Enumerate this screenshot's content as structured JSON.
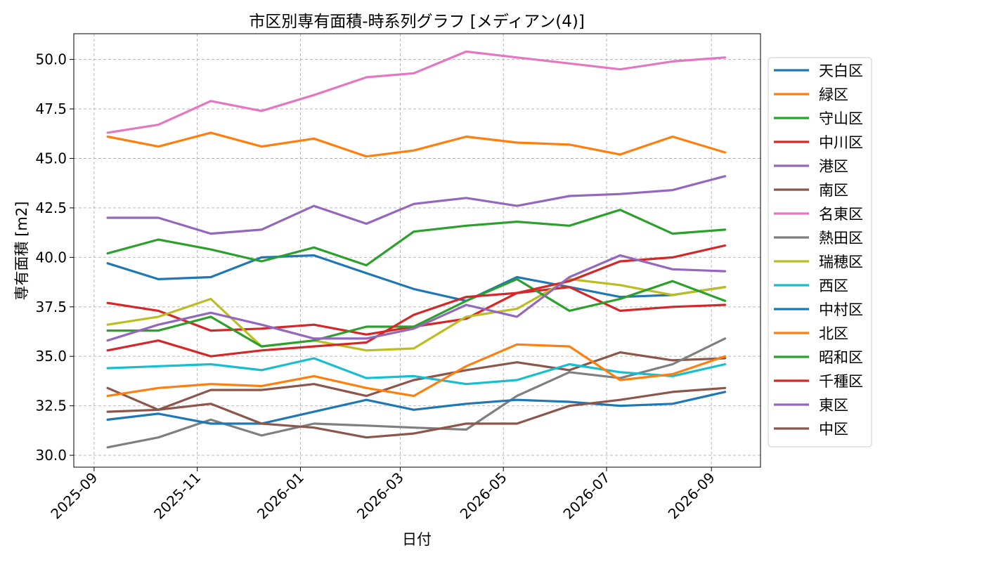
{
  "chart_data": {
    "type": "line",
    "title": "市区別専有面積-時系列グラフ [メディアン(4)]",
    "xlabel": "日付",
    "ylabel": "専有面積 [m2]",
    "x_tick_labels": [
      "2025-09",
      "2025-11",
      "2026-01",
      "2026-03",
      "2026-05",
      "2026-07",
      "2026-09"
    ],
    "y_tick_labels": [
      "30.0",
      "32.5",
      "35.0",
      "37.5",
      "40.0",
      "42.5",
      "45.0",
      "47.5",
      "50.0"
    ],
    "y_ticks": [
      30.0,
      32.5,
      35.0,
      37.5,
      40.0,
      42.5,
      45.0,
      47.5,
      50.0
    ],
    "ylim": [
      29.4,
      51.3
    ],
    "xlim": [
      "2025-08-20",
      "2026-09-30"
    ],
    "grid": true,
    "legend_position": "right",
    "series": [
      {
        "name": "天白区",
        "color": "#1f77b4",
        "x": [
          "2025-09-09",
          "2025-10-09",
          "2025-11-09",
          "2025-12-09",
          "2026-01-09",
          "2026-02-09",
          "2026-03-09",
          "2026-04-09",
          "2026-05-09",
          "2026-06-09",
          "2026-07-09",
          "2026-08-09",
          "2026-09-09"
        ],
        "y": [
          39.7,
          38.9,
          39.0,
          40.0,
          40.1,
          39.2,
          38.4,
          37.8,
          39.0,
          38.5,
          38.0,
          38.1,
          38.5
        ]
      },
      {
        "name": "緑区",
        "color": "#ff7f0e",
        "x": [
          "2025-09-09",
          "2025-10-09",
          "2025-11-09",
          "2025-12-09",
          "2026-01-09",
          "2026-02-09",
          "2026-03-09",
          "2026-04-09",
          "2026-05-09",
          "2026-06-09",
          "2026-07-09",
          "2026-08-09",
          "2026-09-09"
        ],
        "y": [
          46.1,
          45.6,
          46.3,
          45.6,
          46.0,
          45.1,
          45.4,
          46.1,
          45.8,
          45.7,
          45.2,
          46.1,
          45.3
        ]
      },
      {
        "name": "守山区",
        "color": "#2ca02c",
        "x": [
          "2025-09-09",
          "2025-10-09",
          "2025-11-09",
          "2025-12-09",
          "2026-01-09",
          "2026-02-09",
          "2026-03-09",
          "2026-04-09",
          "2026-05-09",
          "2026-06-09",
          "2026-07-09",
          "2026-08-09",
          "2026-09-09"
        ],
        "y": [
          40.2,
          40.9,
          40.4,
          39.8,
          40.5,
          39.6,
          41.3,
          41.6,
          41.8,
          41.6,
          42.4,
          41.2,
          41.4
        ]
      },
      {
        "name": "中川区",
        "color": "#d62728",
        "x": [
          "2025-09-09",
          "2025-10-09",
          "2025-11-09",
          "2025-12-09",
          "2026-01-09",
          "2026-02-09",
          "2026-03-09",
          "2026-04-09",
          "2026-05-09",
          "2026-06-09",
          "2026-07-09",
          "2026-08-09",
          "2026-09-09"
        ],
        "y": [
          37.7,
          37.3,
          36.3,
          36.4,
          36.6,
          36.1,
          36.5,
          36.9,
          38.2,
          38.5,
          37.3,
          37.5,
          37.6
        ]
      },
      {
        "name": "港区",
        "color": "#9467bd",
        "x": [
          "2025-09-09",
          "2025-10-09",
          "2025-11-09",
          "2025-12-09",
          "2026-01-09",
          "2026-02-09",
          "2026-03-09",
          "2026-04-09",
          "2026-05-09",
          "2026-06-09",
          "2026-07-09",
          "2026-08-09",
          "2026-09-09"
        ],
        "y": [
          42.0,
          42.0,
          41.2,
          41.4,
          42.6,
          41.7,
          42.7,
          43.0,
          42.6,
          43.1,
          43.2,
          43.4,
          44.1
        ]
      },
      {
        "name": "南区",
        "color": "#8c564b",
        "x": [
          "2025-09-09",
          "2025-10-09",
          "2025-11-09",
          "2025-12-09",
          "2026-01-09",
          "2026-02-09",
          "2026-03-09",
          "2026-04-09",
          "2026-05-09",
          "2026-06-09",
          "2026-07-09",
          "2026-08-09",
          "2026-09-09"
        ],
        "y": [
          33.4,
          32.3,
          33.3,
          33.3,
          33.6,
          33.0,
          33.8,
          34.3,
          34.7,
          34.3,
          35.2,
          34.8,
          34.9
        ]
      },
      {
        "name": "名東区",
        "color": "#e377c2",
        "x": [
          "2025-09-09",
          "2025-10-09",
          "2025-11-09",
          "2025-12-09",
          "2026-01-09",
          "2026-02-09",
          "2026-03-09",
          "2026-04-09",
          "2026-05-09",
          "2026-06-09",
          "2026-07-09",
          "2026-08-09",
          "2026-09-09"
        ],
        "y": [
          46.3,
          46.7,
          47.9,
          47.4,
          48.2,
          49.1,
          49.3,
          50.4,
          50.1,
          49.8,
          49.5,
          49.9,
          50.1
        ]
      },
      {
        "name": "熱田区",
        "color": "#7f7f7f",
        "x": [
          "2025-09-09",
          "2025-10-09",
          "2025-11-09",
          "2025-12-09",
          "2026-01-09",
          "2026-02-09",
          "2026-03-09",
          "2026-04-09",
          "2026-05-09",
          "2026-06-09",
          "2026-07-09",
          "2026-08-09",
          "2026-09-09"
        ],
        "y": [
          30.4,
          30.9,
          31.8,
          31.0,
          31.6,
          31.5,
          31.4,
          31.3,
          33.0,
          34.2,
          33.9,
          34.6,
          35.9
        ]
      },
      {
        "name": "瑞穂区",
        "color": "#bcbd22",
        "x": [
          "2025-09-09",
          "2025-10-09",
          "2025-11-09",
          "2025-12-09",
          "2026-01-09",
          "2026-02-09",
          "2026-03-09",
          "2026-04-09",
          "2026-05-09",
          "2026-06-09",
          "2026-07-09",
          "2026-08-09",
          "2026-09-09"
        ],
        "y": [
          36.6,
          37.0,
          37.9,
          35.5,
          35.8,
          35.3,
          35.4,
          37.0,
          37.4,
          38.9,
          38.6,
          38.1,
          38.5
        ]
      },
      {
        "name": "西区",
        "color": "#17becf",
        "x": [
          "2025-09-09",
          "2025-10-09",
          "2025-11-09",
          "2025-12-09",
          "2026-01-09",
          "2026-02-09",
          "2026-03-09",
          "2026-04-09",
          "2026-05-09",
          "2026-06-09",
          "2026-07-09",
          "2026-08-09",
          "2026-09-09"
        ],
        "y": [
          34.4,
          34.5,
          34.6,
          34.3,
          34.9,
          33.9,
          34.0,
          33.6,
          33.8,
          34.6,
          34.2,
          34.0,
          34.6
        ]
      },
      {
        "name": "中村区",
        "color": "#1f77b4",
        "x": [
          "2025-09-09",
          "2025-10-09",
          "2025-11-09",
          "2025-12-09",
          "2026-01-09",
          "2026-02-09",
          "2026-03-09",
          "2026-04-09",
          "2026-05-09",
          "2026-06-09",
          "2026-07-09",
          "2026-08-09",
          "2026-09-09"
        ],
        "y": [
          31.8,
          32.1,
          31.6,
          31.6,
          32.2,
          32.8,
          32.3,
          32.6,
          32.8,
          32.7,
          32.5,
          32.6,
          33.2
        ]
      },
      {
        "name": "北区",
        "color": "#ff7f0e",
        "x": [
          "2025-09-09",
          "2025-10-09",
          "2025-11-09",
          "2025-12-09",
          "2026-01-09",
          "2026-02-09",
          "2026-03-09",
          "2026-04-09",
          "2026-05-09",
          "2026-06-09",
          "2026-07-09",
          "2026-08-09",
          "2026-09-09"
        ],
        "y": [
          33.0,
          33.4,
          33.6,
          33.5,
          34.0,
          33.4,
          33.0,
          34.5,
          35.6,
          35.5,
          33.8,
          34.1,
          35.0
        ]
      },
      {
        "name": "昭和区",
        "color": "#2ca02c",
        "x": [
          "2025-09-09",
          "2025-10-09",
          "2025-11-09",
          "2025-12-09",
          "2026-01-09",
          "2026-02-09",
          "2026-03-09",
          "2026-04-09",
          "2026-05-09",
          "2026-06-09",
          "2026-07-09",
          "2026-08-09",
          "2026-09-09"
        ],
        "y": [
          36.3,
          36.3,
          37.0,
          35.5,
          35.8,
          36.5,
          36.5,
          37.8,
          38.9,
          37.3,
          37.9,
          38.8,
          37.8
        ]
      },
      {
        "name": "千種区",
        "color": "#d62728",
        "x": [
          "2025-09-09",
          "2025-10-09",
          "2025-11-09",
          "2025-12-09",
          "2026-01-09",
          "2026-02-09",
          "2026-03-09",
          "2026-04-09",
          "2026-05-09",
          "2026-06-09",
          "2026-07-09",
          "2026-08-09",
          "2026-09-09"
        ],
        "y": [
          35.3,
          35.8,
          35.0,
          35.3,
          35.5,
          35.7,
          37.1,
          38.0,
          38.2,
          38.8,
          39.8,
          40.0,
          40.6
        ]
      },
      {
        "name": "東区",
        "color": "#9467bd",
        "x": [
          "2025-09-09",
          "2025-10-09",
          "2025-11-09",
          "2025-12-09",
          "2026-01-09",
          "2026-02-09",
          "2026-03-09",
          "2026-04-09",
          "2026-05-09",
          "2026-06-09",
          "2026-07-09",
          "2026-08-09",
          "2026-09-09"
        ],
        "y": [
          35.8,
          36.6,
          37.2,
          36.6,
          35.9,
          35.9,
          36.4,
          37.6,
          37.0,
          39.0,
          40.1,
          39.4,
          39.3
        ]
      },
      {
        "name": "中区",
        "color": "#8c564b",
        "x": [
          "2025-09-09",
          "2025-10-09",
          "2025-11-09",
          "2025-12-09",
          "2026-01-09",
          "2026-02-09",
          "2026-03-09",
          "2026-04-09",
          "2026-05-09",
          "2026-06-09",
          "2026-07-09",
          "2026-08-09",
          "2026-09-09"
        ],
        "y": [
          32.2,
          32.3,
          32.6,
          31.6,
          31.4,
          30.9,
          31.1,
          31.6,
          31.6,
          32.5,
          32.8,
          33.2,
          33.4
        ]
      }
    ]
  }
}
